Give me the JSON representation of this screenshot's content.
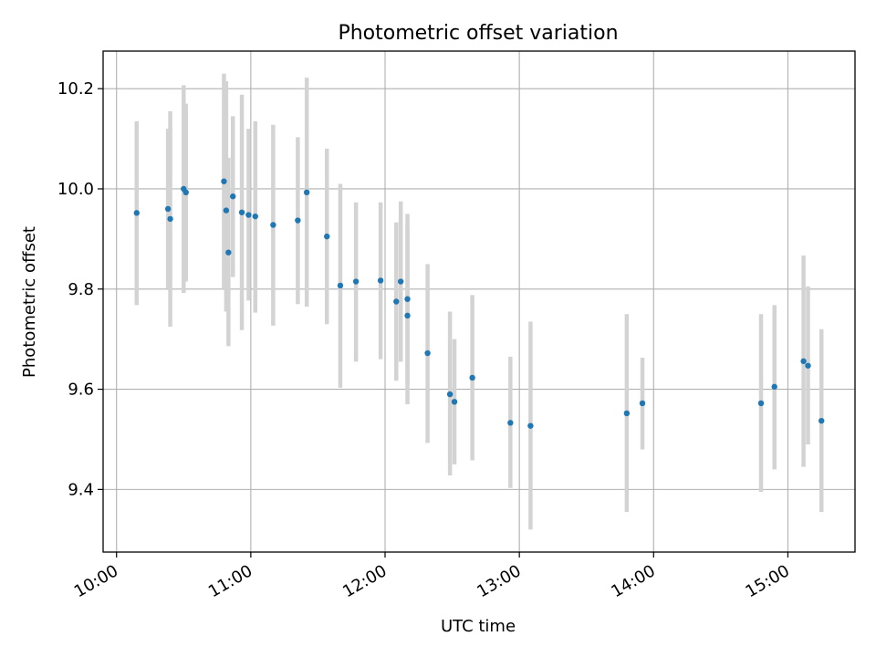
{
  "chart_data": {
    "type": "scatter",
    "title": "Photometric offset variation",
    "xlabel": "UTC time",
    "ylabel": "Photometric offset",
    "x_ticks": [
      "10:00",
      "11:00",
      "12:00",
      "13:00",
      "14:00",
      "15:00"
    ],
    "y_ticks": [
      "9.4",
      "9.6",
      "9.8",
      "10.0",
      "10.2"
    ],
    "x_tick_values": [
      "10:00",
      "11:00",
      "12:00",
      "13:00",
      "14:00",
      "15:00"
    ],
    "y_tick_values": [
      9.4,
      9.6,
      9.8,
      10.0,
      10.2
    ],
    "xlim": [
      "09:54",
      "15:30"
    ],
    "ylim": [
      9.275,
      10.275
    ],
    "grid": true,
    "colors": {
      "point": "#1f77b4",
      "errorbar": "#d3d3d3",
      "grid": "#b0b0b0"
    },
    "series": [
      {
        "points": [
          {
            "x": "10:09",
            "y": 9.952,
            "lo": 9.768,
            "hi": 10.135
          },
          {
            "x": "10:23",
            "y": 9.96,
            "lo": 9.8,
            "hi": 10.12
          },
          {
            "x": "10:24",
            "y": 9.94,
            "lo": 9.725,
            "hi": 10.155
          },
          {
            "x": "10:30",
            "y": 10.0,
            "lo": 9.792,
            "hi": 10.207
          },
          {
            "x": "10:31",
            "y": 9.993,
            "lo": 9.815,
            "hi": 10.17
          },
          {
            "x": "10:48",
            "y": 10.015,
            "lo": 9.8,
            "hi": 10.23
          },
          {
            "x": "10:49",
            "y": 9.957,
            "lo": 9.755,
            "hi": 10.215
          },
          {
            "x": "10:50",
            "y": 9.873,
            "lo": 9.686,
            "hi": 10.062
          },
          {
            "x": "10:52",
            "y": 9.985,
            "lo": 9.824,
            "hi": 10.145
          },
          {
            "x": "10:56",
            "y": 9.953,
            "lo": 9.718,
            "hi": 10.188
          },
          {
            "x": "10:59",
            "y": 9.948,
            "lo": 9.777,
            "hi": 10.12
          },
          {
            "x": "11:02",
            "y": 9.945,
            "lo": 9.753,
            "hi": 10.135
          },
          {
            "x": "11:10",
            "y": 9.928,
            "lo": 9.727,
            "hi": 10.128
          },
          {
            "x": "11:21",
            "y": 9.937,
            "lo": 9.77,
            "hi": 10.103
          },
          {
            "x": "11:25",
            "y": 9.993,
            "lo": 9.765,
            "hi": 10.222
          },
          {
            "x": "11:34",
            "y": 9.905,
            "lo": 9.73,
            "hi": 10.08
          },
          {
            "x": "11:40",
            "y": 9.807,
            "lo": 9.603,
            "hi": 10.01
          },
          {
            "x": "11:47",
            "y": 9.815,
            "lo": 9.655,
            "hi": 9.973
          },
          {
            "x": "11:58",
            "y": 9.817,
            "lo": 9.66,
            "hi": 9.973
          },
          {
            "x": "12:05",
            "y": 9.775,
            "lo": 9.617,
            "hi": 9.933
          },
          {
            "x": "12:07",
            "y": 9.815,
            "lo": 9.655,
            "hi": 9.975
          },
          {
            "x": "12:10",
            "y": 9.747,
            "lo": 9.57,
            "hi": 9.925
          },
          {
            "x": "12:10",
            "y": 9.78,
            "lo": 9.61,
            "hi": 9.95
          },
          {
            "x": "12:19",
            "y": 9.672,
            "lo": 9.493,
            "hi": 9.85
          },
          {
            "x": "12:29",
            "y": 9.59,
            "lo": 9.428,
            "hi": 9.755
          },
          {
            "x": "12:31",
            "y": 9.575,
            "lo": 9.45,
            "hi": 9.7
          },
          {
            "x": "12:39",
            "y": 9.623,
            "lo": 9.458,
            "hi": 9.788
          },
          {
            "x": "12:56",
            "y": 9.533,
            "lo": 9.403,
            "hi": 9.665
          },
          {
            "x": "13:05",
            "y": 9.527,
            "lo": 9.32,
            "hi": 9.735
          },
          {
            "x": "13:48",
            "y": 9.552,
            "lo": 9.355,
            "hi": 9.75
          },
          {
            "x": "13:55",
            "y": 9.572,
            "lo": 9.48,
            "hi": 9.663
          },
          {
            "x": "14:48",
            "y": 9.572,
            "lo": 9.395,
            "hi": 9.75
          },
          {
            "x": "14:54",
            "y": 9.605,
            "lo": 9.44,
            "hi": 9.768
          },
          {
            "x": "15:07",
            "y": 9.656,
            "lo": 9.445,
            "hi": 9.867
          },
          {
            "x": "15:09",
            "y": 9.647,
            "lo": 9.49,
            "hi": 9.805
          },
          {
            "x": "15:15",
            "y": 9.537,
            "lo": 9.355,
            "hi": 9.72
          }
        ]
      }
    ]
  }
}
